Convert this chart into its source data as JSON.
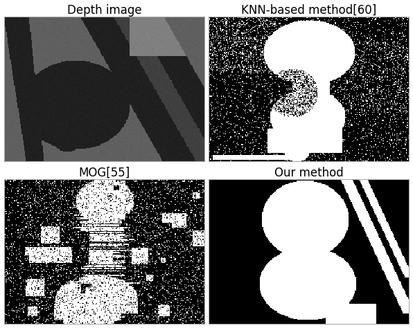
{
  "titles": [
    "Depth image",
    "KNN-based method[60]",
    "MOG[55]",
    "Our method"
  ],
  "title_fontsize": 12,
  "bg_color": "#ffffff",
  "seed": 7
}
